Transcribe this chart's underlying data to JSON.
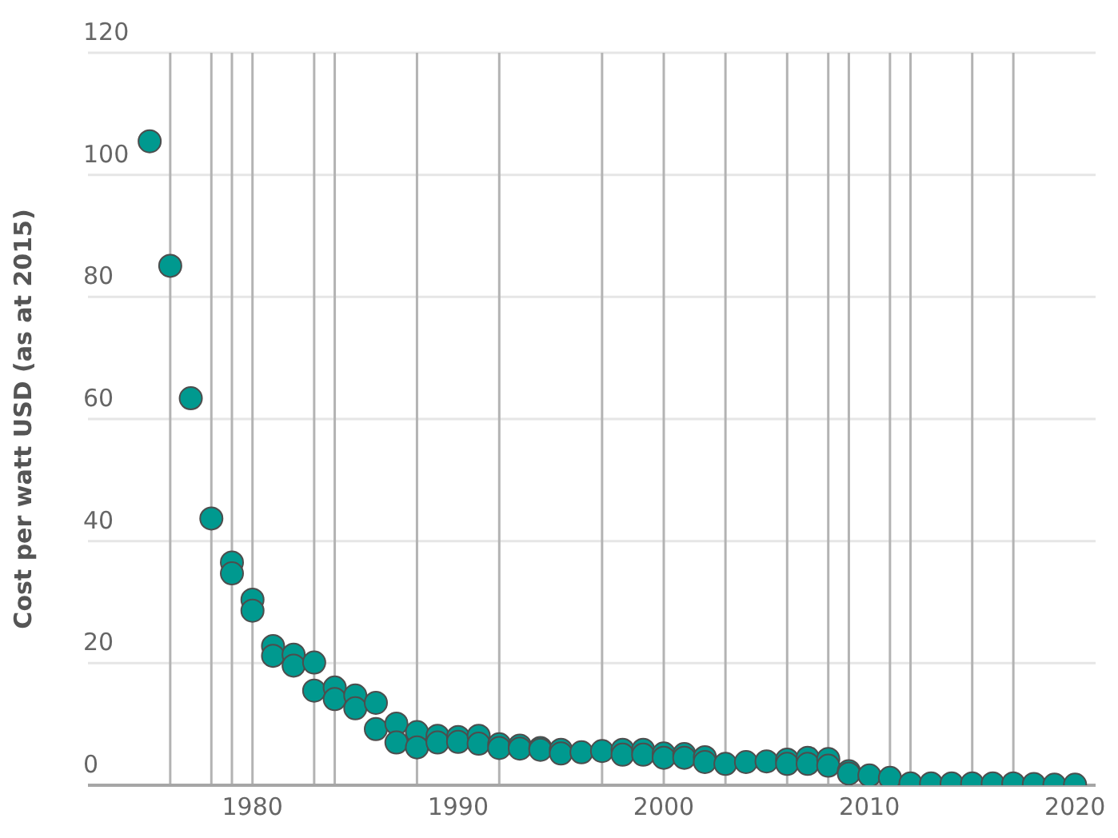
{
  "chart_data": {
    "type": "scatter",
    "ylabel": "Cost per watt USD (as at 2015)",
    "x": [
      1975,
      1976,
      1977,
      1978,
      1979,
      1979,
      1980,
      1980,
      1981,
      1981,
      1982,
      1982,
      1983,
      1983,
      1984,
      1984,
      1985,
      1985,
      1986,
      1986,
      1987,
      1987,
      1988,
      1988,
      1989,
      1989,
      1990,
      1990,
      1991,
      1991,
      1992,
      1992,
      1993,
      1993,
      1994,
      1994,
      1995,
      1995,
      1996,
      1997,
      1998,
      1998,
      1999,
      1999,
      2000,
      2000,
      2001,
      2001,
      2002,
      2002,
      2003,
      2004,
      2005,
      2006,
      2006,
      2007,
      2007,
      2008,
      2008,
      2009,
      2009,
      2010,
      2011,
      2012,
      2013,
      2014,
      2015,
      2016,
      2017,
      2018,
      2019,
      2020
    ],
    "values": [
      105.5,
      85.1,
      63.4,
      43.7,
      36.5,
      34.7,
      30.4,
      28.6,
      22.8,
      21.2,
      21.4,
      19.6,
      20.1,
      15.5,
      16.0,
      14.1,
      14.7,
      12.6,
      13.5,
      9.2,
      10.1,
      7.0,
      8.7,
      6.2,
      8.1,
      7.0,
      7.9,
      7.1,
      8.1,
      6.8,
      6.7,
      6.1,
      6.5,
      6.0,
      6.1,
      5.8,
      5.8,
      5.2,
      5.4,
      5.6,
      5.8,
      5.0,
      5.8,
      5.0,
      5.2,
      4.5,
      5.1,
      4.5,
      4.6,
      3.8,
      3.5,
      3.8,
      3.9,
      4.2,
      3.5,
      4.5,
      3.5,
      4.3,
      3.2,
      2.3,
      1.9,
      1.6,
      1.2,
      0.3,
      0.3,
      0.3,
      0.3,
      0.3,
      0.3,
      0.2,
      0.1,
      0.1
    ],
    "color": "#00998f",
    "xlim": [
      1972,
      2021
    ],
    "xticks": [
      1980,
      1990,
      2000,
      2010,
      2020
    ],
    "ylim": [
      0,
      120
    ],
    "yticks": [
      0,
      20,
      40,
      60,
      80,
      100,
      120
    ],
    "grid": "y",
    "marker": "circle",
    "ref_lines": [
      {
        "axis": "x",
        "value": 1976
      },
      {
        "axis": "x",
        "value": 1978
      },
      {
        "axis": "x",
        "value": 1979
      },
      {
        "axis": "x",
        "value": 1980
      },
      {
        "axis": "x",
        "value": 1983
      },
      {
        "axis": "x",
        "value": 1984
      },
      {
        "axis": "x",
        "value": 1988
      },
      {
        "axis": "x",
        "value": 1992
      },
      {
        "axis": "x",
        "value": 1997
      },
      {
        "axis": "x",
        "value": 2000
      },
      {
        "axis": "x",
        "value": 2003
      },
      {
        "axis": "x",
        "value": 2006
      },
      {
        "axis": "x",
        "value": 2008
      },
      {
        "axis": "x",
        "value": 2009
      },
      {
        "axis": "x",
        "value": 2011
      },
      {
        "axis": "x",
        "value": 2012
      },
      {
        "axis": "x",
        "value": 2015
      },
      {
        "axis": "x",
        "value": 2017
      }
    ]
  }
}
